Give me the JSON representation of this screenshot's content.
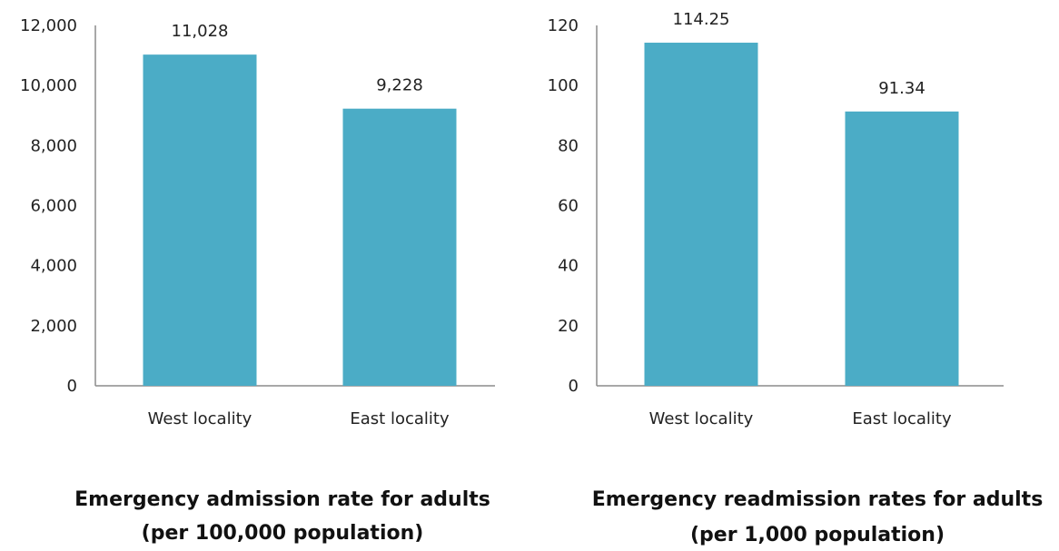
{
  "chart_data": [
    {
      "type": "bar",
      "categories": [
        "West locality",
        "East locality"
      ],
      "values": [
        11028,
        9228
      ],
      "value_labels": [
        "11,028",
        "9,228"
      ],
      "ylim": [
        0,
        12000
      ],
      "yticks": [
        0,
        2000,
        4000,
        6000,
        8000,
        10000,
        12000
      ],
      "ytick_labels": [
        "0",
        "2,000",
        "4,000",
        "6,000",
        "8,000",
        "10,000",
        "12,000"
      ],
      "title_lines": [
        "Emergency admission rate for adults",
        "(per 100,000 population)"
      ],
      "bar_color": "#4bacc6",
      "grid": false
    },
    {
      "type": "bar",
      "categories": [
        "West locality",
        "East locality"
      ],
      "values": [
        114.25,
        91.34
      ],
      "value_labels": [
        "114.25",
        "91.34"
      ],
      "ylim": [
        0,
        120
      ],
      "yticks": [
        0,
        20,
        40,
        60,
        80,
        100,
        120
      ],
      "ytick_labels": [
        "0",
        "20",
        "40",
        "60",
        "80",
        "100",
        "120"
      ],
      "title_lines": [
        "Emergency readmission rates for adults",
        "(per 1,000 population)"
      ],
      "bar_color": "#4bacc6",
      "grid": false
    }
  ]
}
